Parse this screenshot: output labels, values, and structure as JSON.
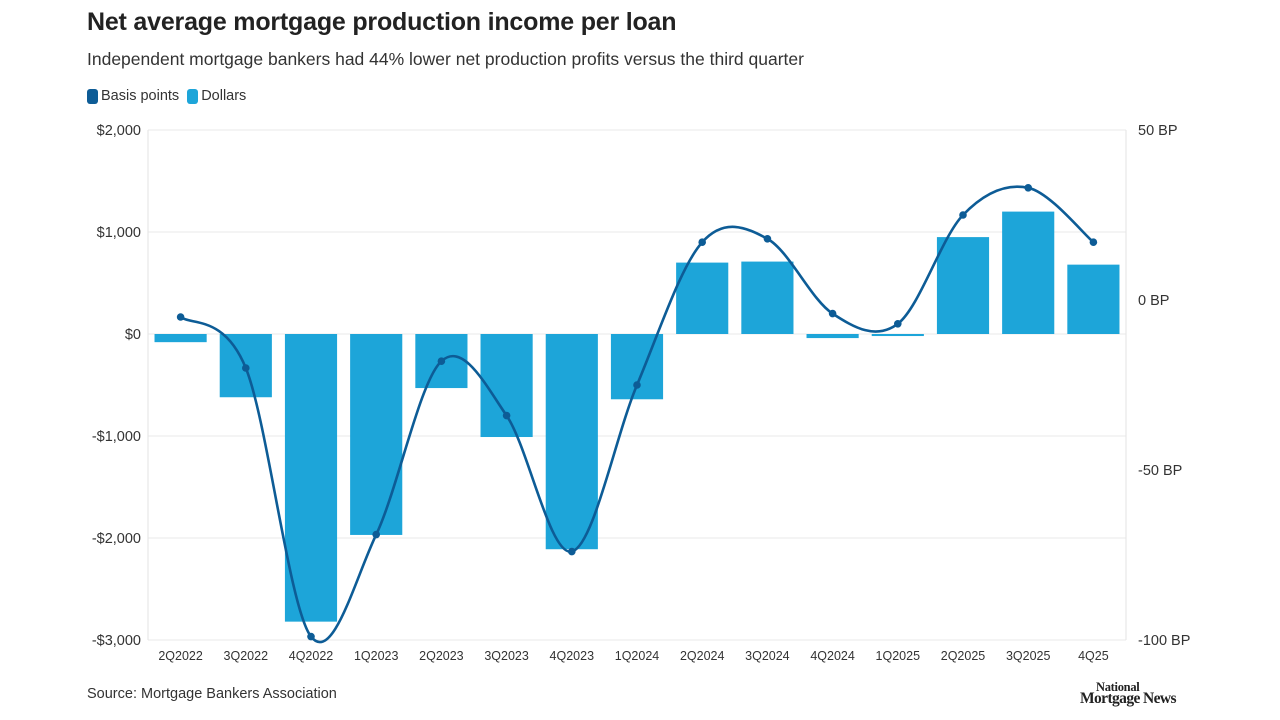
{
  "title": "Net average mortgage production income per loan",
  "subtitle": "Independent mortgage bankers had 44% lower net production profits versus the third quarter",
  "legend": {
    "basis": {
      "label": "Basis points",
      "color": "#0d5c96"
    },
    "dollars": {
      "label": "Dollars",
      "color": "#1da5d9"
    }
  },
  "source": "Source: Mortgage Bankers Association",
  "brand": {
    "line1": "National",
    "line2": "Mortgage News"
  },
  "chart_data": {
    "type": "bar",
    "categories": [
      "2Q2022",
      "3Q2022",
      "4Q2022",
      "1Q2023",
      "2Q2023",
      "3Q2023",
      "4Q2023",
      "1Q2024",
      "2Q2024",
      "3Q2024",
      "4Q2024",
      "1Q2025",
      "2Q2025",
      "3Q2025",
      "4Q25"
    ],
    "series": [
      {
        "name": "Dollars",
        "type": "bar",
        "axis": "left",
        "color": "#1da5d9",
        "values": [
          -80,
          -620,
          -2820,
          -1970,
          -530,
          -1010,
          -2110,
          -640,
          700,
          710,
          -40,
          -20,
          950,
          1200,
          680
        ]
      },
      {
        "name": "Basis points",
        "type": "line",
        "axis": "right",
        "color": "#0d5c96",
        "values": [
          -5,
          -20,
          -99,
          -69,
          -18,
          -34,
          -74,
          -25,
          17,
          18,
          -4,
          -7,
          25,
          33,
          17
        ]
      }
    ],
    "left_axis": {
      "ylim": [
        -3000,
        2000
      ],
      "ticks": [
        2000,
        1000,
        0,
        -1000,
        -2000,
        -3000
      ],
      "tick_labels": [
        "$2,000",
        "$1,000",
        "$0",
        "-$1,000",
        "-$2,000",
        "-$3,000"
      ]
    },
    "right_axis": {
      "ylim": [
        -100,
        50
      ],
      "ticks": [
        50,
        0,
        -50,
        -100
      ],
      "tick_labels": [
        "50 BP",
        "0 BP",
        "-50 BP",
        "-100 BP"
      ]
    },
    "grid": true,
    "legend_position": "top-left"
  }
}
